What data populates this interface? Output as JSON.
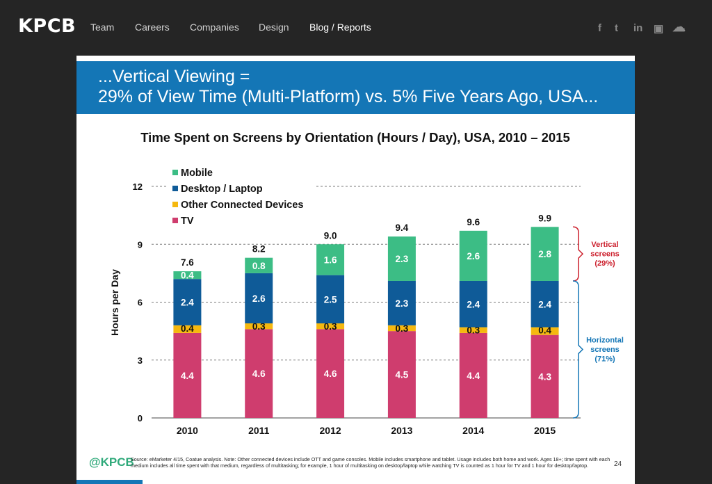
{
  "nav": {
    "logo": "KPCB",
    "links": [
      "Team",
      "Careers",
      "Companies",
      "Design",
      "Blog / Reports"
    ],
    "active_index": 4,
    "social_icons": [
      {
        "name": "facebook-icon",
        "glyph": "f"
      },
      {
        "name": "twitter-icon",
        "glyph": "t"
      },
      {
        "name": "linkedin-icon",
        "glyph": "in"
      },
      {
        "name": "youtube-icon",
        "glyph": "▣"
      },
      {
        "name": "soundcloud-icon",
        "glyph": "☁"
      }
    ]
  },
  "slide": {
    "heading_line1": "...Vertical Viewing =",
    "heading_line2": "29% of View Time (Multi-Platform) vs. 5% Five Years Ago, USA...",
    "footer_logo": "@KPCB",
    "source_note": "Source: eMarketer 4/15, Coatue analysis. Note: Other connected devices include OTT and game consoles. Mobile includes smartphone and tablet. Usage includes both home and work. Ages 18+; time spent with each medium includes all time spent with that medium, regardless of multitasking; for example, 1 hour of multitasking on desktop/laptop while watching TV is counted as 1 hour for TV and 1 hour for desktop/laptop.",
    "slide_number": "24"
  },
  "chart_data": {
    "type": "bar",
    "stacked": true,
    "title": "Time Spent on Screens by Orientation (Hours / Day), USA, 2010 – 2015",
    "xlabel": "",
    "ylabel": "Hours per Day",
    "ylim": [
      0,
      12
    ],
    "yticks": [
      0,
      3,
      6,
      9,
      12
    ],
    "grid": true,
    "legend_position": "top-left",
    "categories": [
      "2010",
      "2011",
      "2012",
      "2013",
      "2014",
      "2015"
    ],
    "series": [
      {
        "name": "TV",
        "color": "#cf3d6e",
        "values": [
          4.4,
          4.6,
          4.6,
          4.5,
          4.4,
          4.3
        ],
        "labels": [
          "4.4",
          "4.6",
          "4.6",
          "4.5",
          "4.4",
          "4.3"
        ]
      },
      {
        "name": "Other Connected Devices",
        "color": "#f5b80f",
        "values": [
          0.4,
          0.3,
          0.3,
          0.3,
          0.3,
          0.4
        ],
        "labels": [
          "0.4",
          "0.3",
          "0.3",
          "0.3",
          "0.3",
          "0.4"
        ]
      },
      {
        "name": "Desktop / Laptop",
        "color": "#0f5b98",
        "values": [
          2.4,
          2.6,
          2.5,
          2.3,
          2.4,
          2.4
        ],
        "labels": [
          "2.4",
          "2.6",
          "2.5",
          "2.3",
          "2.4",
          "2.4"
        ]
      },
      {
        "name": "Mobile",
        "color": "#3cbd85",
        "values": [
          0.4,
          0.8,
          1.6,
          2.3,
          2.6,
          2.8
        ],
        "labels": [
          "0.4",
          "0.8",
          "1.6",
          "2.3",
          "2.6",
          "2.8"
        ]
      }
    ],
    "totals": [
      "7.6",
      "8.2",
      "9.0",
      "9.4",
      "9.6",
      "9.9"
    ],
    "legend_order": [
      "Mobile",
      "Desktop / Laptop",
      "Other Connected Devices",
      "TV"
    ],
    "annotations": [
      {
        "text_lines": [
          "Vertical",
          "screens",
          "(29%)"
        ],
        "color": "#cc1f2c",
        "y_range": [
          7.1,
          9.9
        ]
      },
      {
        "text_lines": [
          "Horizontal",
          "screens",
          "(71%)"
        ],
        "color": "#1476b6",
        "y_range": [
          0,
          7.1
        ]
      }
    ]
  }
}
